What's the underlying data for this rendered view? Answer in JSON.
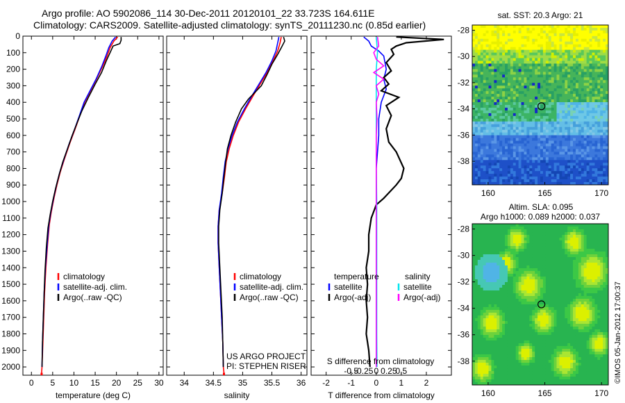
{
  "header": {
    "title_line1": "Argo profile: AO 5902086_114 30-Dec-2011 20120101_22 33.723S 164.611E",
    "title_line2": "Climatology: CARS2009. Satellite-adjusted climatology: synTS_20111230.nc (0.85d earlier)"
  },
  "colors": {
    "climatology": "#ff0000",
    "satellite": "#0000ff",
    "argo": "#000000",
    "salinity_satellite": "#00e5ee",
    "salinity_argo": "#ff00ff"
  },
  "chart_data": [
    {
      "type": "line",
      "id": "temperature",
      "xlabel": "temperature (deg C)",
      "xlim": [
        -2,
        31
      ],
      "xticks": [
        0,
        5,
        10,
        15,
        20,
        25,
        30
      ],
      "ylim": [
        0,
        2050
      ],
      "yticks": [
        0,
        100,
        200,
        300,
        400,
        500,
        600,
        700,
        800,
        900,
        1000,
        1100,
        1200,
        1300,
        1400,
        1500,
        1600,
        1700,
        1800,
        1900,
        2000
      ],
      "legend": [
        "climatology",
        "satellite-adj. clim.",
        "Argo(..raw -QC)"
      ],
      "series": [
        {
          "name": "climatology",
          "color": "#ff0000",
          "points": [
            [
              20.3,
              5
            ],
            [
              19.4,
              30
            ],
            [
              18.5,
              70
            ],
            [
              17.8,
              120
            ],
            [
              16.8,
              180
            ],
            [
              15.3,
              260
            ],
            [
              13.7,
              340
            ],
            [
              12.5,
              400
            ],
            [
              11.4,
              480
            ],
            [
              10.3,
              560
            ],
            [
              9.0,
              650
            ],
            [
              7.8,
              740
            ],
            [
              6.8,
              820
            ],
            [
              6.0,
              900
            ],
            [
              5.3,
              980
            ],
            [
              4.7,
              1060
            ],
            [
              4.2,
              1140
            ],
            [
              3.8,
              1260
            ],
            [
              3.4,
              1400
            ],
            [
              3.1,
              1550
            ],
            [
              2.9,
              1700
            ],
            [
              2.7,
              1850
            ],
            [
              2.5,
              2000
            ],
            [
              2.4,
              2035
            ]
          ]
        },
        {
          "name": "satellite-adj. clim.",
          "color": "#0000ff",
          "points": [
            [
              19.8,
              5
            ],
            [
              19.0,
              30
            ],
            [
              18.2,
              70
            ],
            [
              17.5,
              120
            ],
            [
              16.6,
              180
            ],
            [
              15.2,
              260
            ],
            [
              13.6,
              340
            ],
            [
              12.4,
              400
            ],
            [
              11.3,
              480
            ],
            [
              10.2,
              560
            ],
            [
              8.9,
              650
            ],
            [
              7.7,
              740
            ],
            [
              6.7,
              820
            ],
            [
              5.9,
              900
            ],
            [
              5.2,
              980
            ],
            [
              4.6,
              1060
            ],
            [
              4.1,
              1140
            ],
            [
              3.7,
              1260
            ],
            [
              3.3,
              1400
            ],
            [
              3.0,
              1550
            ],
            [
              2.8,
              1700
            ],
            [
              2.6,
              1850
            ],
            [
              2.5,
              2000
            ]
          ]
        },
        {
          "name": "Argo(..raw -QC)",
          "color": "#000000",
          "points": [
            [
              21.1,
              5
            ],
            [
              21.1,
              25
            ],
            [
              20.8,
              45
            ],
            [
              19.2,
              60
            ],
            [
              18.5,
              100
            ],
            [
              17.6,
              150
            ],
            [
              16.5,
              220
            ],
            [
              15.0,
              290
            ],
            [
              13.4,
              370
            ],
            [
              11.9,
              450
            ],
            [
              10.8,
              520
            ],
            [
              9.6,
              600
            ],
            [
              8.5,
              680
            ],
            [
              7.4,
              760
            ],
            [
              6.5,
              840
            ],
            [
              5.7,
              920
            ],
            [
              5.0,
              1000
            ],
            [
              4.4,
              1080
            ],
            [
              3.9,
              1160
            ],
            [
              3.5,
              1280
            ],
            [
              3.2,
              1420
            ],
            [
              3.0,
              1550
            ],
            [
              2.8,
              1700
            ],
            [
              2.6,
              1850
            ],
            [
              2.5,
              2000
            ]
          ]
        }
      ]
    },
    {
      "type": "line",
      "id": "salinity",
      "xlabel": "salinity",
      "xlim": [
        33.7,
        36.1
      ],
      "xticks": [
        34,
        34.5,
        35,
        35.5,
        36
      ],
      "ylim": [
        0,
        2050
      ],
      "legend": [
        "climatology",
        "satellite-adj. clim.",
        "Argo(..raw -QC)"
      ],
      "annotation": [
        "US ARGO PROJECT",
        "PI: STEPHEN RISER"
      ],
      "series": [
        {
          "name": "climatology",
          "color": "#ff0000",
          "points": [
            [
              35.66,
              5
            ],
            [
              35.64,
              40
            ],
            [
              35.6,
              90
            ],
            [
              35.52,
              150
            ],
            [
              35.42,
              220
            ],
            [
              35.3,
              290
            ],
            [
              35.18,
              360
            ],
            [
              35.05,
              440
            ],
            [
              34.93,
              520
            ],
            [
              34.84,
              600
            ],
            [
              34.77,
              680
            ],
            [
              34.72,
              760
            ],
            [
              34.69,
              850
            ],
            [
              34.65,
              950
            ],
            [
              34.6,
              1050
            ],
            [
              34.58,
              1150
            ],
            [
              34.58,
              1250
            ],
            [
              34.6,
              1400
            ],
            [
              34.62,
              1550
            ],
            [
              34.64,
              1700
            ],
            [
              34.66,
              1850
            ],
            [
              34.67,
              2000
            ],
            [
              34.68,
              2035
            ]
          ]
        },
        {
          "name": "satellite-adj. clim.",
          "color": "#0000ff",
          "points": [
            [
              35.62,
              5
            ],
            [
              35.6,
              40
            ],
            [
              35.57,
              90
            ],
            [
              35.5,
              150
            ],
            [
              35.4,
              220
            ],
            [
              35.28,
              290
            ],
            [
              35.16,
              360
            ],
            [
              35.03,
              440
            ],
            [
              34.91,
              520
            ],
            [
              34.82,
              600
            ],
            [
              34.75,
              680
            ],
            [
              34.7,
              760
            ],
            [
              34.67,
              850
            ],
            [
              34.64,
              950
            ],
            [
              34.6,
              1050
            ],
            [
              34.58,
              1150
            ],
            [
              34.58,
              1250
            ],
            [
              34.6,
              1400
            ],
            [
              34.62,
              1550
            ],
            [
              34.64,
              1700
            ],
            [
              34.66,
              1850
            ],
            [
              34.67,
              2000
            ]
          ]
        },
        {
          "name": "Argo(..raw -QC)",
          "color": "#000000",
          "points": [
            [
              35.7,
              5
            ],
            [
              35.72,
              30
            ],
            [
              35.66,
              70
            ],
            [
              35.6,
              110
            ],
            [
              35.5,
              170
            ],
            [
              35.42,
              230
            ],
            [
              35.32,
              300
            ],
            [
              35.1,
              380
            ],
            [
              34.98,
              440
            ],
            [
              34.88,
              520
            ],
            [
              34.8,
              600
            ],
            [
              34.74,
              680
            ],
            [
              34.71,
              760
            ],
            [
              34.68,
              850
            ],
            [
              34.65,
              950
            ],
            [
              34.61,
              1050
            ],
            [
              34.59,
              1150
            ],
            [
              34.59,
              1250
            ],
            [
              34.61,
              1400
            ],
            [
              34.63,
              1550
            ],
            [
              34.65,
              1700
            ],
            [
              34.66,
              1850
            ],
            [
              34.67,
              2000
            ]
          ]
        }
      ]
    },
    {
      "type": "line",
      "id": "difference",
      "xlabel": "T difference from climatology",
      "xlabel_top": "S difference from climatology",
      "xlim": [
        -2.6,
        3.0
      ],
      "xticks": [
        -2,
        -1,
        0,
        1,
        2
      ],
      "xticks_s": [
        -0.5,
        -0.25,
        0,
        0.25,
        0.5
      ],
      "xticklabels_s": [
        "-0.5",
        "-0.25",
        "0",
        "0.25",
        "0.5"
      ],
      "ylim": [
        0,
        2050
      ],
      "legend_temperature": {
        "heading": "temperature",
        "items": [
          "satellite",
          "Argo(-adj)"
        ]
      },
      "legend_salinity": {
        "heading": "salinity",
        "items": [
          "satellite",
          "Argo(-adj)"
        ]
      },
      "series": [
        {
          "name": "satellite",
          "color": "#0000ff",
          "points": [
            [
              -0.5,
              5
            ],
            [
              -0.3,
              30
            ],
            [
              -0.2,
              60
            ],
            [
              0.1,
              90
            ],
            [
              0.3,
              120
            ],
            [
              0.4,
              200
            ],
            [
              0.3,
              260
            ],
            [
              0.4,
              320
            ],
            [
              0.2,
              400
            ],
            [
              0.1,
              500
            ],
            [
              0.1,
              600
            ],
            [
              0.0,
              800
            ],
            [
              0.0,
              1000
            ],
            [
              0.0,
              1200
            ],
            [
              0.0,
              1400
            ],
            [
              0.0,
              1600
            ],
            [
              0.0,
              1800
            ],
            [
              0.0,
              2000
            ]
          ]
        },
        {
          "name": "Argo(-adj)",
          "color": "#000000",
          "points": [
            [
              0.8,
              5
            ],
            [
              2.7,
              20
            ],
            [
              1.2,
              40
            ],
            [
              0.8,
              60
            ],
            [
              0.6,
              80
            ],
            [
              0.7,
              110
            ],
            [
              0.4,
              160
            ],
            [
              0.6,
              210
            ],
            [
              0.3,
              250
            ],
            [
              0.5,
              290
            ],
            [
              0.2,
              330
            ],
            [
              0.9,
              370
            ],
            [
              0.4,
              420
            ],
            [
              0.6,
              480
            ],
            [
              0.4,
              560
            ],
            [
              0.5,
              640
            ],
            [
              0.8,
              700
            ],
            [
              1.1,
              800
            ],
            [
              1.0,
              860
            ],
            [
              0.8,
              900
            ],
            [
              0.3,
              980
            ],
            [
              0.0,
              1020
            ],
            [
              -0.2,
              1100
            ],
            [
              -0.3,
              1200
            ],
            [
              -0.3,
              1300
            ],
            [
              -0.4,
              1400
            ],
            [
              -0.35,
              1500
            ],
            [
              -0.4,
              1600
            ],
            [
              -0.35,
              1700
            ],
            [
              -0.4,
              1800
            ],
            [
              -0.3,
              1900
            ],
            [
              -0.25,
              2000
            ]
          ]
        },
        {
          "name": "salinity satellite",
          "color": "#00e5ee",
          "points": [
            [
              0.0,
              5
            ],
            [
              0.05,
              100
            ],
            [
              0.0,
              200
            ],
            [
              0.0,
              400
            ],
            [
              0.0,
              600
            ],
            [
              0.0,
              800
            ],
            [
              0.02,
              1000
            ],
            [
              0.02,
              1200
            ],
            [
              0.02,
              1400
            ],
            [
              0.02,
              1600
            ],
            [
              0.02,
              1800
            ],
            [
              0.03,
              2000
            ]
          ]
        },
        {
          "name": "salinity Argo(-adj)",
          "color": "#ff00ff",
          "points": [
            [
              0.05,
              5
            ],
            [
              0.1,
              60
            ],
            [
              -0.1,
              100
            ],
            [
              0.0,
              140
            ],
            [
              0.3,
              180
            ],
            [
              -0.1,
              220
            ],
            [
              0.3,
              260
            ],
            [
              0.0,
              300
            ],
            [
              0.1,
              350
            ],
            [
              0.0,
              400
            ],
            [
              0.03,
              500
            ],
            [
              0.0,
              600
            ],
            [
              0.0,
              800
            ],
            [
              0.0,
              1000
            ],
            [
              0.0,
              1200
            ],
            [
              0.0,
              1400
            ],
            [
              0.0,
              1600
            ],
            [
              0.0,
              1800
            ],
            [
              0.0,
              2000
            ]
          ]
        }
      ]
    },
    {
      "type": "heatmap",
      "id": "sst_map",
      "title": "sat. SST: 20.3 Argo: 21",
      "xlim": [
        158.6,
        170.6
      ],
      "ylim": [
        -39.8,
        -27.6
      ],
      "xticks": [
        160,
        165,
        170
      ],
      "yticks": [
        -28,
        -30,
        -32,
        -34,
        -36,
        -38
      ],
      "marker": {
        "lon": 164.7,
        "lat": -33.8
      }
    },
    {
      "type": "heatmap",
      "id": "sla_map",
      "title_line1": "Altim. SLA: 0.095",
      "title_line2": "Argo h1000: 0.089 h2000: 0.037",
      "xlim": [
        158.6,
        170.6
      ],
      "ylim": [
        -39.8,
        -27.6
      ],
      "xticks": [
        160,
        165,
        170
      ],
      "yticks": [
        -28,
        -30,
        -32,
        -34,
        -36,
        -38
      ],
      "marker": {
        "lon": 164.7,
        "lat": -33.7
      }
    }
  ],
  "footer": {
    "credit": "©IMOS 05-Jan-2012 17:00:37"
  }
}
